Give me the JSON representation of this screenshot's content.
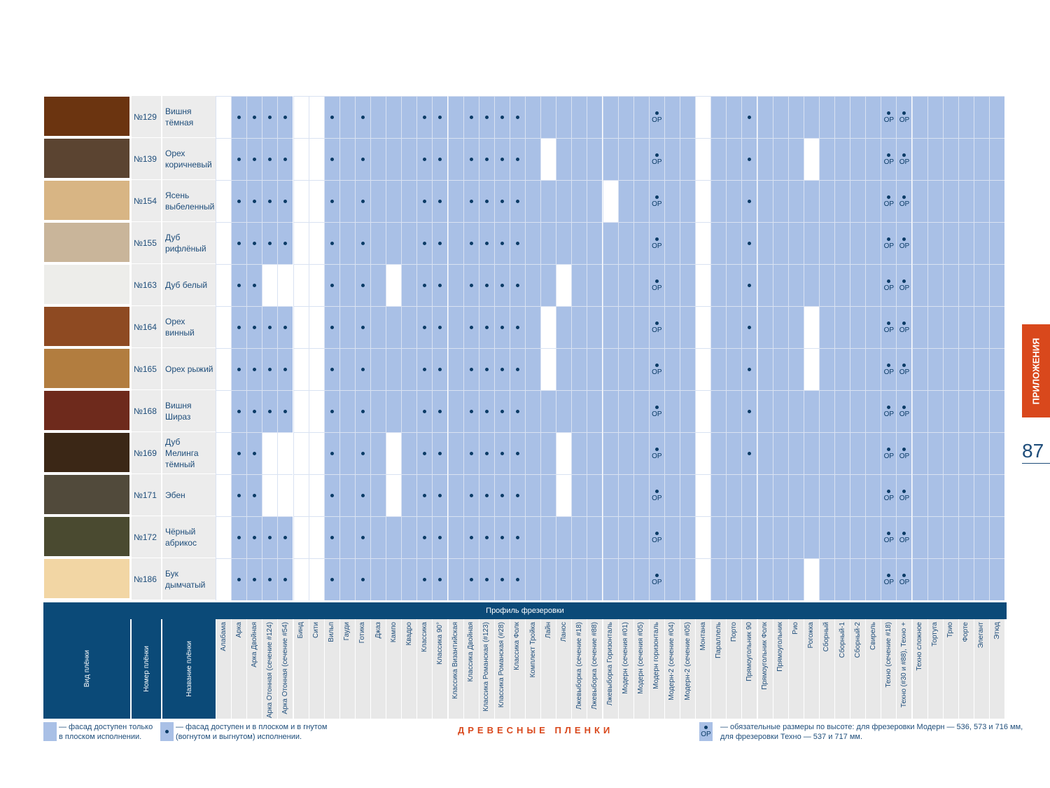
{
  "rows": [
    {
      "num": "№129",
      "name": "Вишня\nтёмная",
      "texture": "#6b3410"
    },
    {
      "num": "№139",
      "name": "Орех\nкоричневый",
      "texture": "#5b4431"
    },
    {
      "num": "№154",
      "name": "Ясень\nвыбеленный",
      "texture": "#d8b584"
    },
    {
      "num": "№155",
      "name": "Дуб\nрифлёный",
      "texture": "#c9b59a"
    },
    {
      "num": "№163",
      "name": "Дуб белый",
      "texture": "#ededea"
    },
    {
      "num": "№164",
      "name": "Орех винный",
      "texture": "#8e4a22"
    },
    {
      "num": "№165",
      "name": "Орех рыжий",
      "texture": "#b27d3f"
    },
    {
      "num": "№168",
      "name": "Вишня Шираз",
      "texture": "#6e2a1c"
    },
    {
      "num": "№169",
      "name": "Дуб Мелинга\nтёмный",
      "texture": "#3b2716"
    },
    {
      "num": "№171",
      "name": "Эбен",
      "texture": "#514a3b"
    },
    {
      "num": "№172",
      "name": "Чёрный\nабрикос",
      "texture": "#4a4a30"
    },
    {
      "num": "№186",
      "name": "Бук\nдымчатый",
      "texture": "#f2d6a4"
    }
  ],
  "profiles": [
    "Алабама",
    "Арка",
    "Арка Двойная",
    "Арка Отонная (сечение #124)",
    "Арка Отонная (сечение #54)",
    "Бинд",
    "Сити",
    "Вильп",
    "Гауди",
    "Готика",
    "Джаз",
    "Кампо",
    "Квадро",
    "Классика",
    "Классика 90°",
    "Классика Византийская",
    "Классика Двойная",
    "Классика Романская (#123)",
    "Классика Романская (#28)",
    "Классика Фолк",
    "Комплект Тройка",
    "Лайн",
    "Ланос",
    "Лжевыборка (сечение #18)",
    "Лжевыборка (сечение #88)",
    "Лжевыборка Горизонталь",
    "Модерн (сечения #01)",
    "Модерн (сечения #05)",
    "Модерн горизонталь",
    "Модерн-2 (сечение #04)",
    "Модерн-2 (сечение #05)",
    "Монтана",
    "Параллель",
    "Порто",
    "Прямоугольник 90",
    "Прямоугольник Фолк",
    "Прямоугольник",
    "Рио",
    "Рогожка",
    "Сборный",
    "Сборный-1",
    "Сборный-2",
    "Свирель",
    "Техно (сечение #18)",
    "Техно (#30 и #88), Техно +",
    "Техно сложное",
    "Тортуга",
    "Трио",
    "Форте",
    "Элегант",
    "Этюд"
  ],
  "col_status": "Columns keyed by profile index: blue = flat only, white = not available",
  "header": {
    "profile_title": "Профиль фрезеровки",
    "col_texture": "Вид плёнки",
    "col_number": "Номер плёнки",
    "col_name": "Название плёнки"
  },
  "legend": {
    "flat_only": "— фасад доступен только\n   в плоском исполнении.",
    "flat_and_bent": "— фасад доступен и в плоском и в гнутом\n   (вогнутом и выгнутом) исполнении.",
    "or_note": "— обязательные размеры по высоте: для фрезеровки Модерн — 536, 573 и 716 мм,\n                                                         для фрезеровки Техно — 537 и 717 мм.",
    "or_label": "ОР",
    "dot_symbol": "•"
  },
  "footer_title": "ДРЕВЕСНЫЕ ПЛЕНКИ",
  "side_tab": "ПРИЛОЖЕНИЯ",
  "page_number": "87",
  "colors": {
    "available_blue": "#a9c0e6",
    "header_navy": "#0b4a78",
    "accent_orange": "#d9481c"
  }
}
